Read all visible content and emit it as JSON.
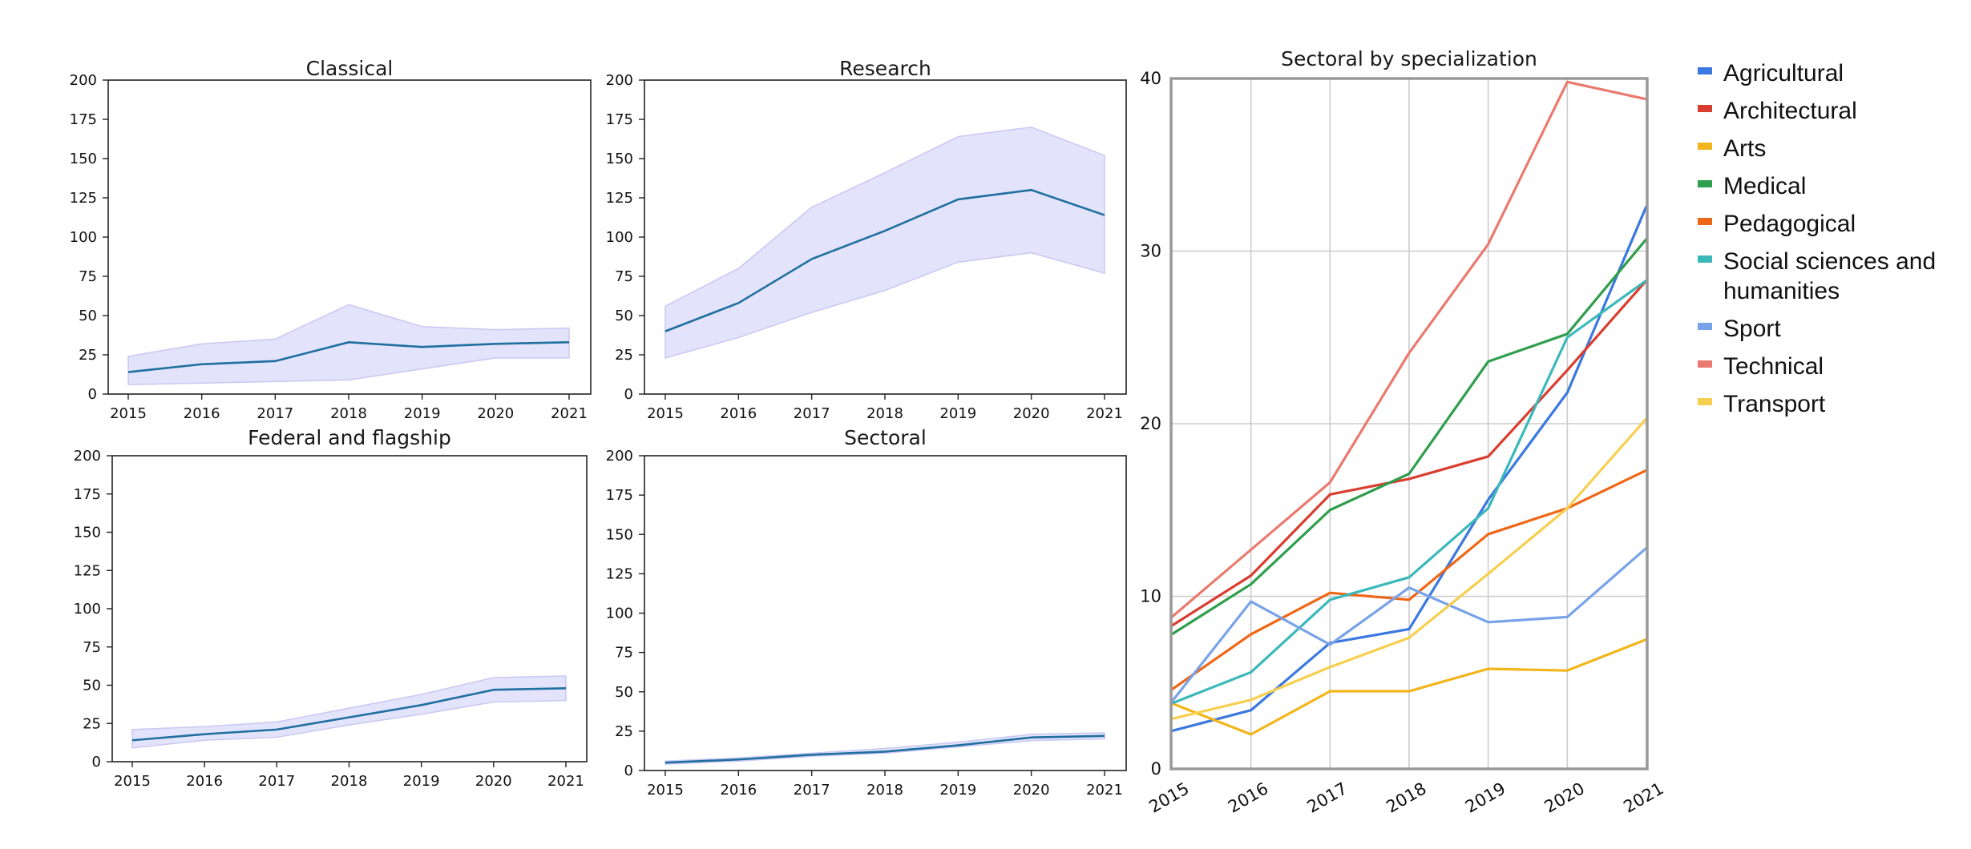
{
  "figure": {
    "background": "#ffffff",
    "line_color": "#1f6f9f",
    "band_color": "#e3e3fb",
    "band_edge_color": "#c8c8f4",
    "grid_color": "#cccccc",
    "frame_color": "#9a9a9a"
  },
  "chart_data": [
    {
      "id": "classical",
      "type": "line",
      "title": "Classical",
      "x": [
        "2015",
        "2016",
        "2017",
        "2018",
        "2019",
        "2020",
        "2021"
      ],
      "series": [
        {
          "name": "Classical",
          "values": [
            14,
            19,
            21,
            33,
            30,
            32,
            33
          ]
        }
      ],
      "band_lower": [
        6,
        7,
        8,
        9,
        16,
        23,
        23
      ],
      "band_upper": [
        24,
        32,
        35,
        57,
        43,
        41,
        42
      ],
      "yticks": [
        0,
        25,
        50,
        75,
        100,
        125,
        150,
        175,
        200
      ],
      "ylim": [
        0,
        200
      ],
      "grid": false
    },
    {
      "id": "research",
      "type": "line",
      "title": "Research",
      "x": [
        "2015",
        "2016",
        "2017",
        "2018",
        "2019",
        "2020",
        "2021"
      ],
      "series": [
        {
          "name": "Research",
          "values": [
            40,
            58,
            86,
            104,
            124,
            130,
            114
          ]
        }
      ],
      "band_lower": [
        23,
        36,
        52,
        66,
        84,
        90,
        77
      ],
      "band_upper": [
        56,
        80,
        119,
        141,
        164,
        170,
        152
      ],
      "yticks": [
        0,
        25,
        50,
        75,
        100,
        125,
        150,
        175,
        200
      ],
      "ylim": [
        0,
        200
      ],
      "grid": false
    },
    {
      "id": "federal",
      "type": "line",
      "title": "Federal and flagship",
      "x": [
        "2015",
        "2016",
        "2017",
        "2018",
        "2019",
        "2020",
        "2021"
      ],
      "series": [
        {
          "name": "Federal and flagship",
          "values": [
            14,
            18,
            21,
            29,
            37,
            47,
            48
          ]
        }
      ],
      "band_lower": [
        9,
        14,
        16,
        24,
        31,
        39,
        40
      ],
      "band_upper": [
        21,
        23,
        26,
        35,
        44,
        55,
        56
      ],
      "yticks": [
        0,
        25,
        50,
        75,
        100,
        125,
        150,
        175,
        200
      ],
      "ylim": [
        0,
        200
      ],
      "grid": false
    },
    {
      "id": "sectoral",
      "type": "line",
      "title": "Sectoral",
      "x": [
        "2015",
        "2016",
        "2017",
        "2018",
        "2019",
        "2020",
        "2021"
      ],
      "series": [
        {
          "name": "Sectoral",
          "values": [
            5,
            7,
            10,
            12,
            16,
            21,
            22
          ]
        }
      ],
      "band_lower": [
        4,
        6,
        9,
        11,
        15,
        19,
        20
      ],
      "band_upper": [
        6,
        8,
        11,
        14,
        18,
        23,
        24
      ],
      "yticks": [
        0,
        25,
        50,
        75,
        100,
        125,
        150,
        175,
        200
      ],
      "ylim": [
        0,
        200
      ],
      "grid": false
    },
    {
      "id": "specialization",
      "type": "line",
      "title": "Sectoral by specialization",
      "x": [
        "2015",
        "2016",
        "2017",
        "2018",
        "2019",
        "2020",
        "2021"
      ],
      "yticks": [
        0,
        10,
        20,
        30,
        40
      ],
      "ylim": [
        0,
        40
      ],
      "grid": true,
      "legend": "right",
      "series": [
        {
          "name": "Agricultural",
          "color": "#3b78e0",
          "values": [
            2.2,
            3.4,
            7.3,
            8.1,
            15.6,
            21.8,
            32.6
          ]
        },
        {
          "name": "Architectural",
          "color": "#d93d2f",
          "values": [
            8.3,
            11.2,
            15.9,
            16.8,
            18.1,
            23.1,
            28.3
          ]
        },
        {
          "name": "Arts",
          "color": "#f2b51c",
          "values": [
            3.8,
            2.0,
            4.5,
            4.5,
            5.8,
            5.7,
            7.5
          ]
        },
        {
          "name": "Medical",
          "color": "#2f9e4d",
          "values": [
            7.8,
            10.7,
            15.0,
            17.1,
            23.6,
            25.2,
            30.7
          ]
        },
        {
          "name": "Pedagogical",
          "color": "#ef6616",
          "values": [
            4.6,
            7.8,
            10.2,
            9.8,
            13.6,
            15.1,
            17.3
          ]
        },
        {
          "name": "Social sciences and humanities",
          "color": "#3bb8ba",
          "values": [
            3.8,
            5.6,
            9.8,
            11.1,
            15.1,
            25.0,
            28.3
          ]
        },
        {
          "name": "Sport",
          "color": "#78a3e8",
          "values": [
            3.9,
            9.7,
            7.2,
            10.5,
            8.5,
            8.8,
            12.8
          ]
        },
        {
          "name": "Technical",
          "color": "#ea7a6f",
          "values": [
            8.8,
            12.7,
            16.6,
            24.1,
            30.4,
            39.8,
            38.8
          ]
        },
        {
          "name": "Transport",
          "color": "#f7cf4e",
          "values": [
            2.9,
            4.0,
            5.9,
            7.6,
            11.3,
            15.1,
            20.3
          ]
        }
      ]
    }
  ]
}
